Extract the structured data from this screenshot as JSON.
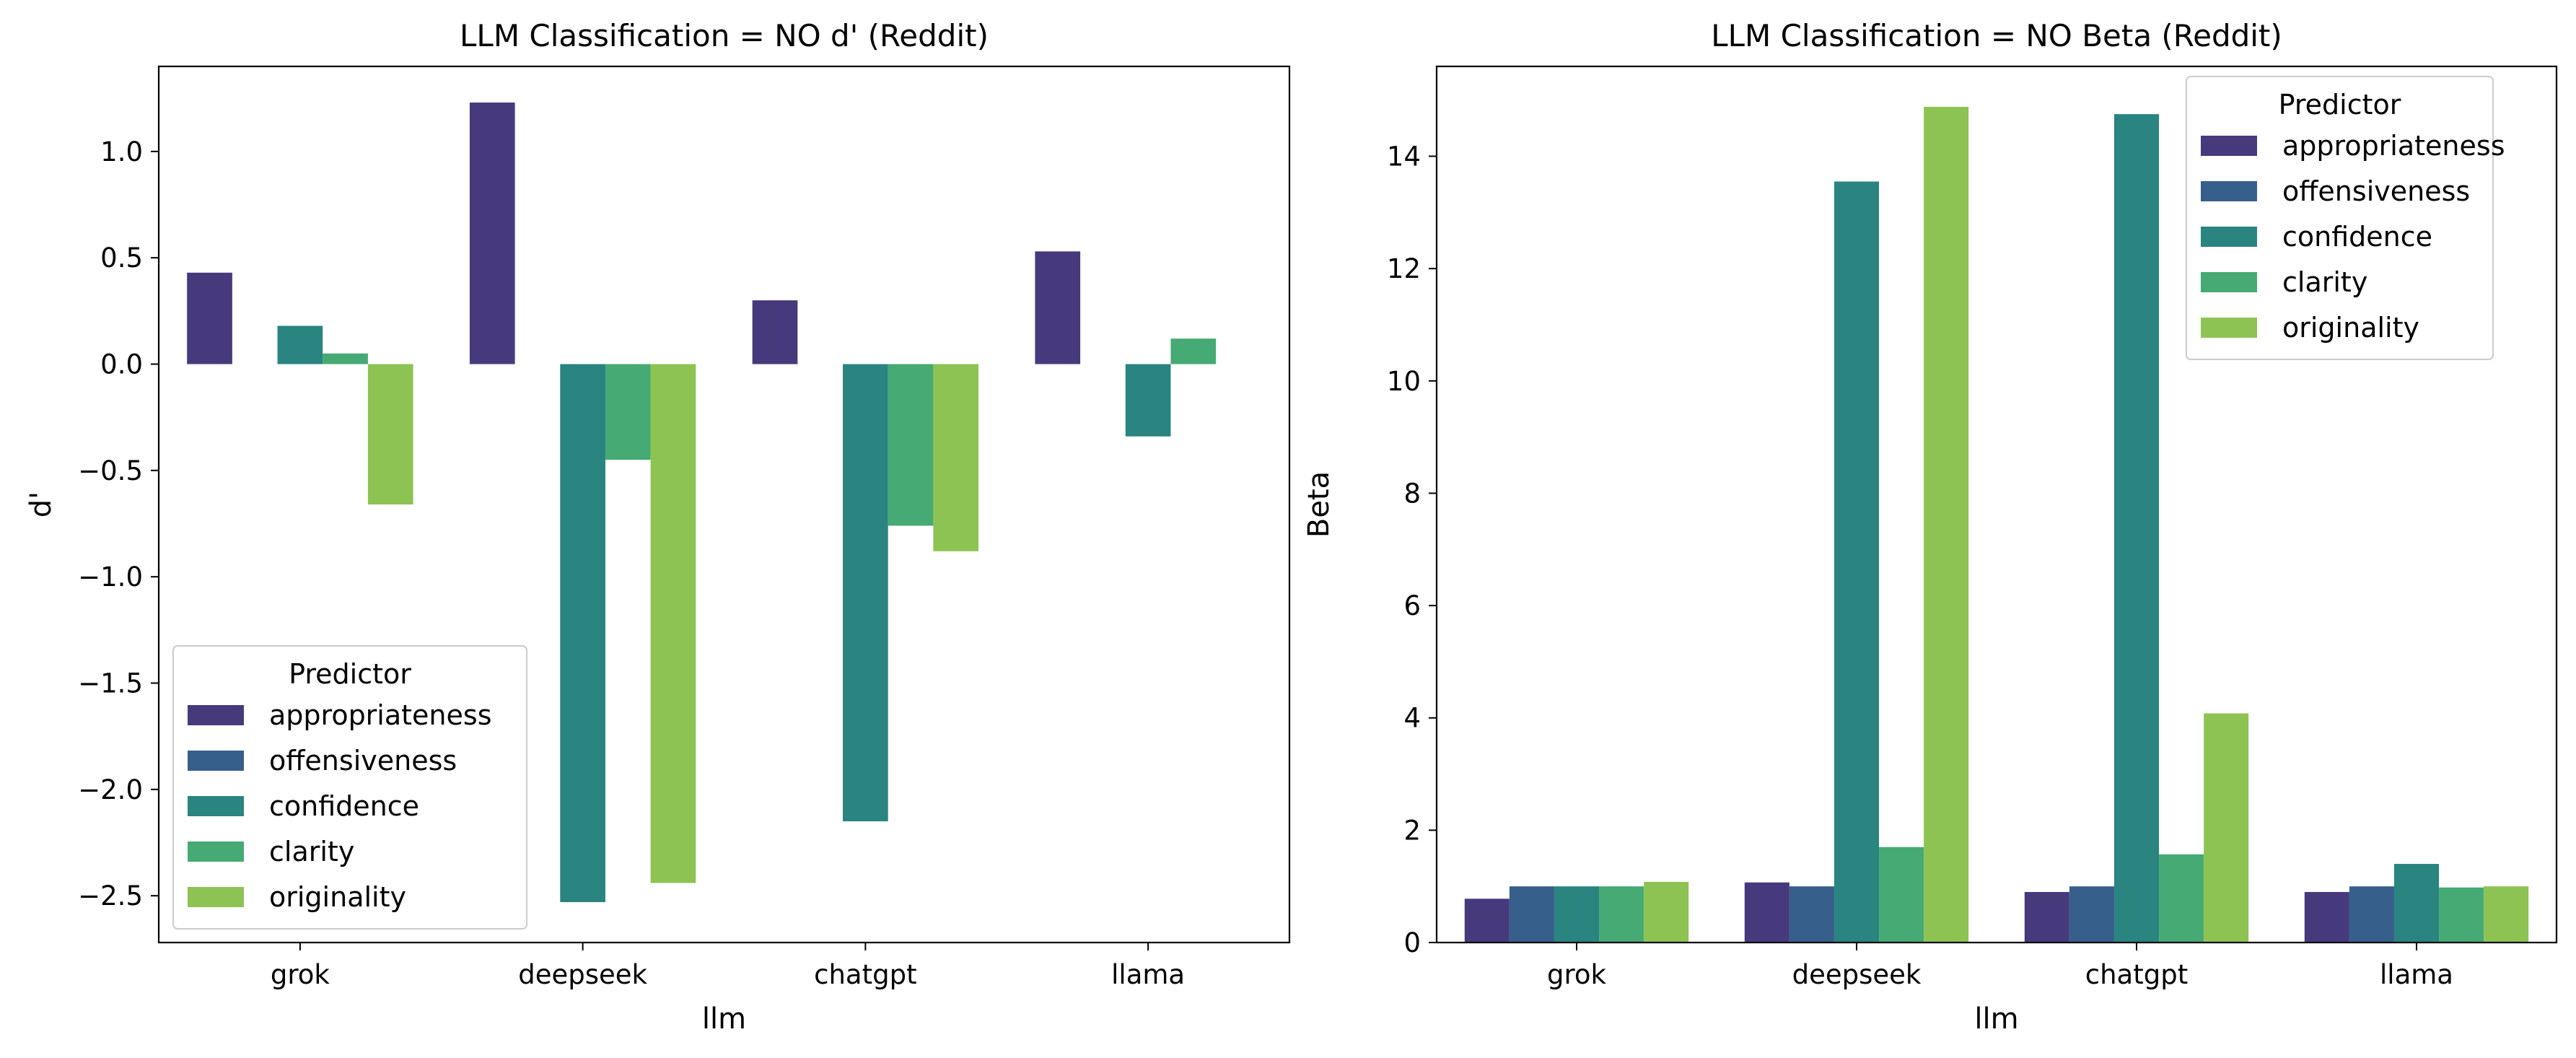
{
  "chart_data": [
    {
      "type": "bar",
      "title": "LLM Classification = NO d' (Reddit)",
      "xlabel": "llm",
      "ylabel": "d'",
      "categories": [
        "grok",
        "deepseek",
        "chatgpt",
        "llama"
      ],
      "ylim": [
        -2.72,
        1.4
      ],
      "yticks": [
        1.0,
        0.5,
        0.0,
        -0.5,
        -1.0,
        -1.5,
        -2.0,
        -2.5
      ],
      "ytick_labels": [
        "1.0",
        "0.5",
        "0.0",
        "−0.5",
        "−1.0",
        "−1.5",
        "−2.0",
        "−2.5"
      ],
      "grid": false,
      "legend": {
        "title": "Predictor",
        "placement": "lower-left"
      },
      "series": [
        {
          "name": "appropriateness",
          "color": "#463a7d",
          "values": [
            0.43,
            1.23,
            0.3,
            0.53
          ]
        },
        {
          "name": "offensiveness",
          "color": "#375f8c",
          "values": [
            0.0,
            0.0,
            0.0,
            0.0
          ]
        },
        {
          "name": "confidence",
          "color": "#2a8480",
          "values": [
            0.18,
            -2.53,
            -2.15,
            -0.34
          ]
        },
        {
          "name": "clarity",
          "color": "#45aa73",
          "values": [
            0.05,
            -0.45,
            -0.76,
            0.12
          ]
        },
        {
          "name": "originality",
          "color": "#8dc353",
          "values": [
            -0.66,
            -2.44,
            -0.88,
            0.0
          ]
        }
      ]
    },
    {
      "type": "bar",
      "title": "LLM Classification = NO Beta (Reddit)",
      "xlabel": "llm",
      "ylabel": "Beta",
      "categories": [
        "grok",
        "deepseek",
        "chatgpt",
        "llama"
      ],
      "ylim": [
        0,
        15.6
      ],
      "yticks": [
        0,
        2,
        4,
        6,
        8,
        10,
        12,
        14
      ],
      "ytick_labels": [
        "0",
        "2",
        "4",
        "6",
        "8",
        "10",
        "12",
        "14"
      ],
      "grid": false,
      "legend": {
        "title": "Predictor",
        "placement": "top-right"
      },
      "series": [
        {
          "name": "appropriateness",
          "color": "#463a7d",
          "values": [
            0.78,
            1.07,
            0.9,
            0.9
          ]
        },
        {
          "name": "offensiveness",
          "color": "#375f8c",
          "values": [
            1.0,
            1.0,
            1.0,
            1.0
          ]
        },
        {
          "name": "confidence",
          "color": "#2a8480",
          "values": [
            1.0,
            13.55,
            14.75,
            1.4
          ]
        },
        {
          "name": "clarity",
          "color": "#45aa73",
          "values": [
            1.0,
            1.7,
            1.57,
            0.98
          ]
        },
        {
          "name": "originality",
          "color": "#8dc353",
          "values": [
            1.08,
            14.88,
            4.08,
            1.0
          ]
        }
      ]
    }
  ]
}
